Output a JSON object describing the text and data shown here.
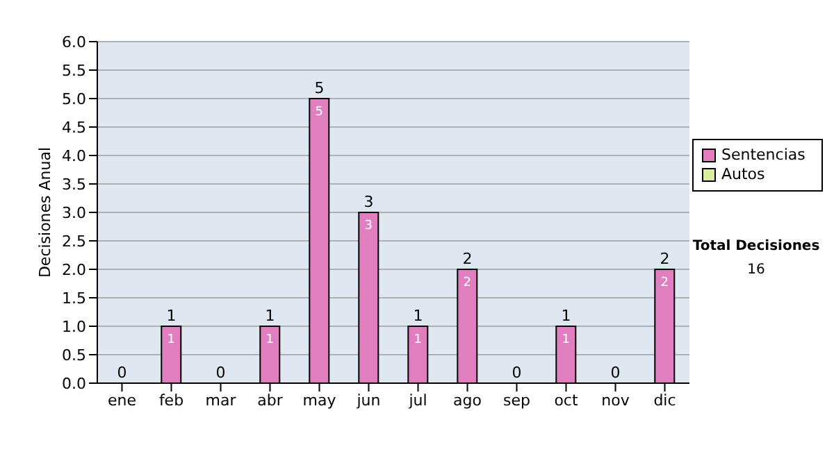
{
  "chart_data": {
    "type": "bar",
    "stacked": true,
    "ylabel": "Decisiones Anual",
    "categories": [
      "ene",
      "feb",
      "mar",
      "abr",
      "may",
      "jun",
      "jul",
      "ago",
      "sep",
      "oct",
      "nov",
      "dic"
    ],
    "series": [
      {
        "name": "Sentencias",
        "color": "#e07ec0",
        "values": [
          0,
          1,
          0,
          1,
          5,
          3,
          1,
          2,
          0,
          1,
          0,
          2
        ],
        "value_labels": [
          null,
          "1",
          null,
          "1",
          "5",
          "3",
          "1",
          "2",
          null,
          "1",
          null,
          "2"
        ]
      },
      {
        "name": "Autos",
        "color": "#d8eca0",
        "values": [
          0,
          0,
          0,
          0,
          0,
          0,
          0,
          0,
          0,
          0,
          0,
          0
        ]
      }
    ],
    "totals": [
      "0",
      "1",
      "0",
      "1",
      "5",
      "3",
      "1",
      "2",
      "0",
      "1",
      "0",
      "2"
    ],
    "ylim": [
      0,
      6
    ],
    "yticks": [
      {
        "value": 0,
        "label": "0.0"
      },
      {
        "value": 0.5,
        "label": "0.5"
      },
      {
        "value": 1,
        "label": "1.0"
      },
      {
        "value": 1.5,
        "label": "1.5"
      },
      {
        "value": 2,
        "label": "2.0"
      },
      {
        "value": 2.5,
        "label": "2.5"
      },
      {
        "value": 3,
        "label": "3.0"
      },
      {
        "value": 3.5,
        "label": "3.5"
      },
      {
        "value": 4,
        "label": "4.0"
      },
      {
        "value": 4.5,
        "label": "4.5"
      },
      {
        "value": 5,
        "label": "5.0"
      },
      {
        "value": 5.5,
        "label": "5.5"
      },
      {
        "value": 6,
        "label": "6.0"
      }
    ],
    "grid": "y",
    "legend": "right",
    "annotations": [
      "Total Decisiones",
      "16"
    ]
  }
}
